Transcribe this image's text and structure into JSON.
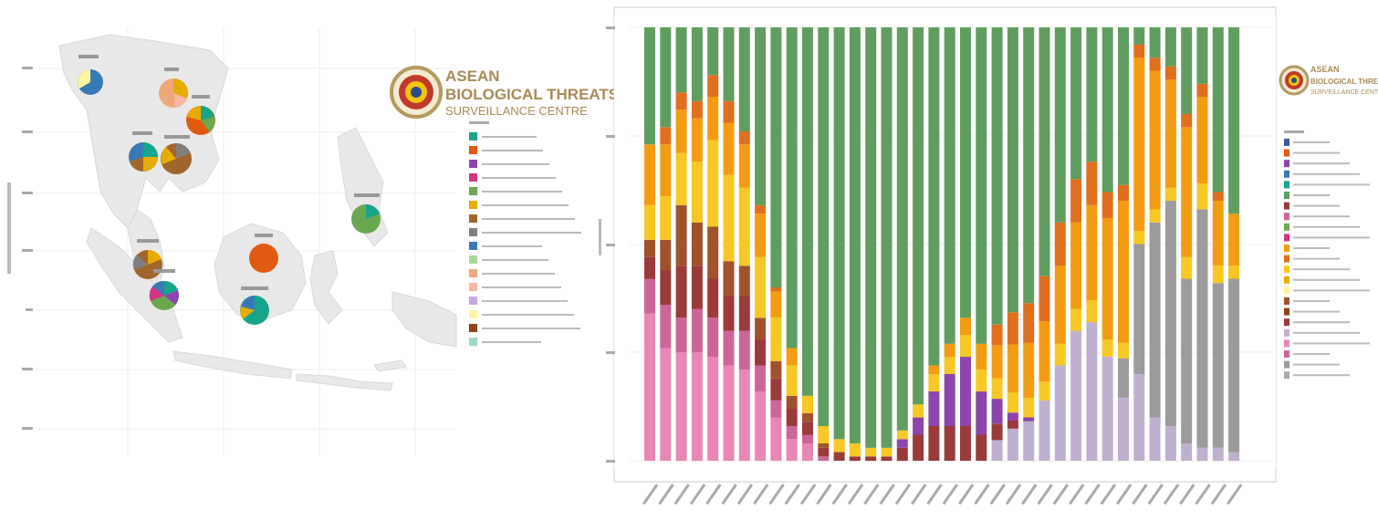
{
  "map_panel": {
    "logo": {
      "line1": "ASEAN",
      "line2": "BIOLOGICAL THREATS",
      "line3": "SURVEILLANCE CENTRE"
    },
    "legend_entries": [
      {
        "color": "#17a589"
      },
      {
        "color": "#e05a10"
      },
      {
        "color": "#8e44ad"
      },
      {
        "color": "#d63384"
      },
      {
        "color": "#6aa84f"
      },
      {
        "color": "#e6ac00"
      },
      {
        "color": "#a0662b"
      },
      {
        "color": "#7f7f7f"
      },
      {
        "color": "#3779b5"
      },
      {
        "color": "#a8d79a"
      },
      {
        "color": "#f0a87a"
      },
      {
        "color": "#f7b7a3"
      },
      {
        "color": "#c8a8e0"
      },
      {
        "color": "#fff3a0"
      },
      {
        "color": "#8b4513"
      },
      {
        "color": "#9ad8c8"
      }
    ]
  },
  "chart_data": {
    "type": "bar",
    "stacked": true,
    "n_bars": 38,
    "grid": true,
    "legend_position": "right",
    "series": [
      {
        "color": "#e887b5",
        "values": [
          0.34,
          0.26,
          0.25,
          0.25,
          0.24,
          0.22,
          0.21,
          0.16,
          0.1,
          0.05,
          0.04,
          0,
          0,
          0,
          0,
          0,
          0,
          0,
          0,
          0,
          0,
          0,
          0,
          0,
          0,
          0,
          0,
          0,
          0,
          0,
          0,
          0,
          0,
          0,
          0,
          0,
          0,
          0
        ]
      },
      {
        "color": "#cc6699",
        "values": [
          0.08,
          0.1,
          0.08,
          0.1,
          0.09,
          0.08,
          0.09,
          0.06,
          0.04,
          0.03,
          0.02,
          0.01,
          0,
          0,
          0,
          0,
          0,
          0,
          0,
          0,
          0,
          0,
          0,
          0,
          0,
          0,
          0,
          0,
          0,
          0,
          0,
          0,
          0,
          0,
          0,
          0,
          0,
          0
        ]
      },
      {
        "color": "#c0b0d0",
        "values": [
          0,
          0,
          0,
          0,
          0,
          0,
          0,
          0,
          0,
          0,
          0,
          0,
          0,
          0,
          0,
          0,
          0,
          0,
          0,
          0,
          0,
          0,
          0.05,
          0.08,
          0.1,
          0.16,
          0.22,
          0.3,
          0.32,
          0.24,
          0.16,
          0.2,
          0.1,
          0.08,
          0.04,
          0.03,
          0.03,
          0.02
        ]
      },
      {
        "color": "#9b9b9b",
        "values": [
          0,
          0,
          0,
          0,
          0,
          0,
          0,
          0,
          0,
          0,
          0,
          0,
          0,
          0,
          0,
          0,
          0,
          0,
          0,
          0,
          0,
          0,
          0,
          0,
          0,
          0,
          0,
          0,
          0,
          0,
          0.1,
          0.3,
          0.45,
          0.52,
          0.38,
          0.55,
          0.38,
          0.4
        ]
      },
      {
        "color": "#9b3a3a",
        "values": [
          0.05,
          0.08,
          0.12,
          0.1,
          0.09,
          0.08,
          0.08,
          0.06,
          0.05,
          0.04,
          0.03,
          0.02,
          0.02,
          0.01,
          0.01,
          0.01,
          0.03,
          0.06,
          0.08,
          0.08,
          0.08,
          0.06,
          0.04,
          0.02,
          0,
          0,
          0,
          0,
          0,
          0,
          0,
          0,
          0,
          0,
          0,
          0,
          0,
          0
        ]
      },
      {
        "color": "#8e44ad",
        "values": [
          0,
          0,
          0,
          0,
          0,
          0,
          0,
          0,
          0,
          0,
          0,
          0,
          0,
          0,
          0,
          0,
          0.02,
          0.04,
          0.08,
          0.12,
          0.16,
          0.1,
          0.06,
          0.02,
          0.01,
          0,
          0,
          0,
          0,
          0,
          0,
          0,
          0,
          0,
          0,
          0,
          0,
          0
        ]
      },
      {
        "color": "#a0522d",
        "values": [
          0.04,
          0.07,
          0.14,
          0.1,
          0.12,
          0.08,
          0.07,
          0.05,
          0.04,
          0.03,
          0.02,
          0.01,
          0,
          0,
          0,
          0,
          0,
          0,
          0,
          0,
          0,
          0,
          0,
          0,
          0,
          0,
          0,
          0,
          0,
          0,
          0,
          0,
          0,
          0,
          0,
          0,
          0,
          0
        ]
      },
      {
        "color": "#f7c824",
        "values": [
          0.08,
          0.1,
          0.12,
          0.14,
          0.2,
          0.2,
          0.18,
          0.14,
          0.1,
          0.07,
          0.04,
          0.04,
          0.03,
          0.03,
          0.02,
          0.02,
          0.02,
          0.03,
          0.04,
          0.04,
          0.05,
          0.05,
          0.05,
          0.05,
          0.05,
          0.05,
          0.05,
          0.05,
          0.05,
          0.04,
          0.04,
          0.03,
          0.03,
          0.03,
          0.05,
          0.06,
          0.04,
          0.03
        ]
      },
      {
        "color": "#f39c12",
        "values": [
          0.14,
          0.12,
          0.1,
          0.1,
          0.1,
          0.12,
          0.1,
          0.1,
          0.06,
          0.04,
          0,
          0,
          0,
          0,
          0,
          0,
          0,
          0,
          0.02,
          0.03,
          0.04,
          0.06,
          0.08,
          0.12,
          0.14,
          0.16,
          0.18,
          0.2,
          0.22,
          0.28,
          0.36,
          0.4,
          0.32,
          0.25,
          0.3,
          0.2,
          0.15,
          0.12
        ]
      },
      {
        "color": "#e06f1e",
        "values": [
          0,
          0.04,
          0.04,
          0.04,
          0.05,
          0.05,
          0.03,
          0.02,
          0.01,
          0,
          0,
          0,
          0,
          0,
          0,
          0,
          0,
          0,
          0,
          0,
          0,
          0,
          0.05,
          0.08,
          0.1,
          0.12,
          0.1,
          0.1,
          0.1,
          0.06,
          0.04,
          0.03,
          0.03,
          0.03,
          0.03,
          0.03,
          0.02,
          0
        ]
      },
      {
        "color": "#5f9e5f",
        "values": [
          0.27,
          0.23,
          0.15,
          0.17,
          0.11,
          0.17,
          0.24,
          0.41,
          0.6,
          0.74,
          0.85,
          0.92,
          0.95,
          0.96,
          0.97,
          0.97,
          0.93,
          0.87,
          0.78,
          0.73,
          0.67,
          0.73,
          0.72,
          0.71,
          0.7,
          0.66,
          0.45,
          0.35,
          0.31,
          0.38,
          0.4,
          0.04,
          0.07,
          0.09,
          0.2,
          0.13,
          0.38,
          0.43
        ]
      },
      {
        "color": "#3b5c99",
        "values": [
          0,
          0,
          0,
          0,
          0,
          0,
          0,
          0,
          0,
          0,
          0,
          0,
          0,
          0,
          0,
          0,
          0,
          0,
          0,
          0,
          0,
          0,
          0,
          0,
          0,
          0,
          0,
          0,
          0,
          0,
          0,
          0,
          0,
          0,
          0,
          0,
          0,
          0
        ]
      }
    ]
  }
}
